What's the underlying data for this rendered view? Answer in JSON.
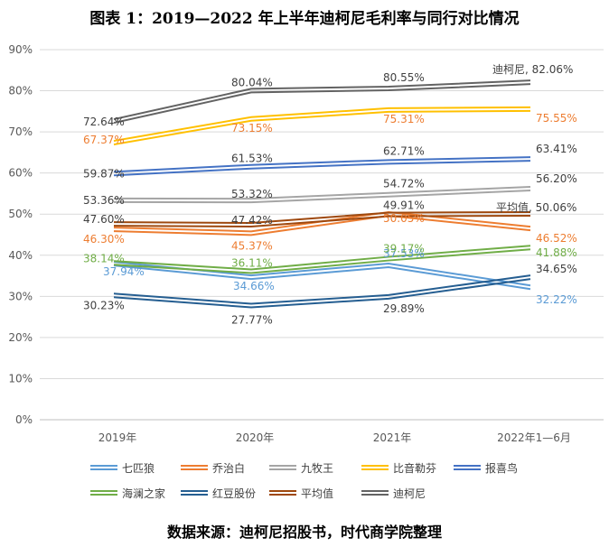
{
  "header": {
    "title": "图表 1：2019—2022 年上半年迪柯尼毛利率与同行对比情况"
  },
  "footer": {
    "source": "数据来源：迪柯尼招股书，时代商学院整理"
  },
  "chart_data": {
    "type": "line",
    "categories": [
      "2019年",
      "2020年",
      "2021年",
      "2022年1—6月"
    ],
    "ylim": [
      0,
      90
    ],
    "yticks": [
      "0%",
      "10%",
      "20%",
      "30%",
      "40%",
      "50%",
      "60%",
      "70%",
      "80%",
      "90%"
    ],
    "grid": true,
    "legend_position": "bottom",
    "series": [
      {
        "name": "七匹狼",
        "color": "#5b9bd5",
        "values": [
          37.94,
          34.66,
          37.53,
          32.22
        ],
        "labels": [
          "37.94%",
          "34.66%",
          "37.53%",
          "32.22%"
        ]
      },
      {
        "name": "乔治白",
        "color": "#ed7d31",
        "values": [
          46.3,
          45.37,
          50.05,
          46.52
        ],
        "labels": [
          "46.30%",
          "45.37%",
          "50.05%",
          "46.52%"
        ]
      },
      {
        "name": "九牧王",
        "color": "#a5a5a5",
        "values": [
          53.36,
          53.32,
          54.72,
          56.2
        ],
        "labels": [
          "53.36%",
          "53.32%",
          "54.72%",
          "56.20%"
        ]
      },
      {
        "name": "比音勒芬",
        "color": "#ffc000",
        "values": [
          67.37,
          73.15,
          75.31,
          75.55
        ],
        "labels": [
          "67.37%",
          "73.15%",
          "75.31%",
          "75.55%"
        ]
      },
      {
        "name": "报喜鸟",
        "color": "#4472c4",
        "values": [
          59.87,
          61.53,
          62.71,
          63.41
        ],
        "labels": [
          "59.87%",
          "61.53%",
          "62.71%",
          "63.41%"
        ]
      },
      {
        "name": "海澜之家",
        "color": "#70ad47",
        "values": [
          38.14,
          36.11,
          39.17,
          41.88
        ],
        "labels": [
          "38.14%",
          "36.11%",
          "39.17%",
          "41.88%"
        ]
      },
      {
        "name": "红豆股份",
        "color": "#255e91",
        "values": [
          30.23,
          27.77,
          29.89,
          34.65
        ],
        "labels": [
          "30.23%",
          "27.77%",
          "29.89%",
          "34.65%"
        ]
      },
      {
        "name": "平均值",
        "color": "#9e480e",
        "values": [
          47.6,
          47.42,
          49.91,
          50.06
        ],
        "labels": [
          "47.60%",
          "47.42%",
          "49.91%",
          "平均值, 50.06%"
        ]
      },
      {
        "name": "迪柯尼",
        "color": "#636363",
        "values": [
          72.64,
          80.04,
          80.55,
          82.06
        ],
        "labels": [
          "72.64%",
          "80.04%",
          "80.55%",
          "迪柯尼, 82.06%"
        ]
      }
    ]
  }
}
